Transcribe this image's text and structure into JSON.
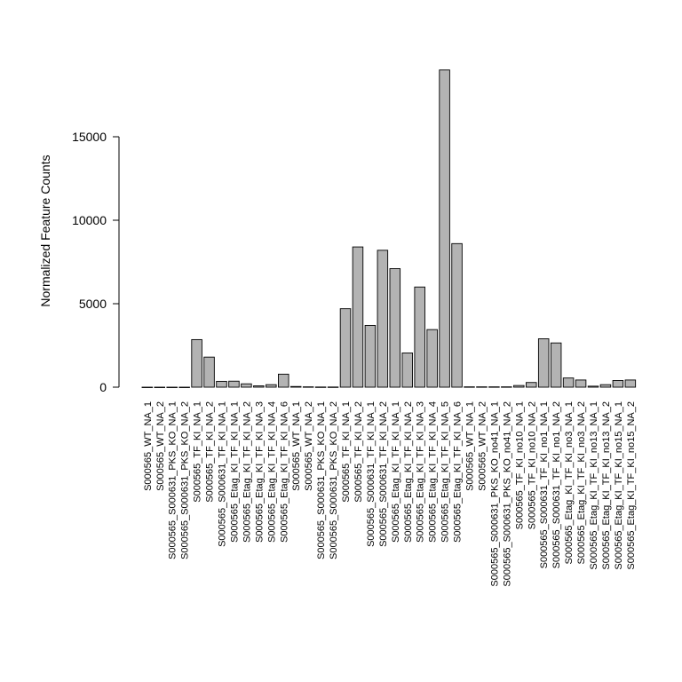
{
  "chart_data": {
    "type": "bar",
    "title": "",
    "xlabel": "",
    "ylabel": "Normalized Feature Counts",
    "ylim": [
      0,
      19000
    ],
    "yticks": [
      0,
      5000,
      10000,
      15000
    ],
    "ytick_labels": [
      "0",
      "5000",
      "10000",
      "15000"
    ],
    "bar_color": "#b3b3b3",
    "grid": false,
    "categories": [
      "S000565_WT_NA_1",
      "S000565_WT_NA_2",
      "S000565_S000631_PKS_KO_NA_1",
      "S000565_S000631_PKS_KO_NA_2",
      "S000565_TF_KI_NA_1",
      "S000565_TF_KI_NA_2",
      "S000565_S000631_TF_KI_NA_1",
      "S000565_Etag_KI_TF_KI_NA_1",
      "S000565_Etag_KI_TF_KI_NA_2",
      "S000565_Etag_KI_TF_KI_NA_3",
      "S000565_Etag_KI_TF_KI_NA_4",
      "S000565_Etag_KI_TF_KI_NA_6",
      "S000565_WT_NA_1",
      "S000565_WT_NA_2",
      "S000565_S000631_PKS_KO_NA_1",
      "S000565_S000631_PKS_KO_NA_2",
      "S000565_TF_KI_NA_1",
      "S000565_TF_KI_NA_2",
      "S000565_S000631_TF_KI_NA_1",
      "S000565_S000631_TF_KI_NA_2",
      "S000565_Etag_KI_TF_KI_NA_1",
      "S000565_Etag_KI_TF_KI_NA_2",
      "S000565_Etag_KI_TF_KI_NA_3",
      "S000565_Etag_KI_TF_KI_NA_4",
      "S000565_Etag_KI_TF_KI_NA_5",
      "S000565_Etag_KI_TF_KI_NA_6",
      "S000565_WT_NA_1",
      "S000565_WT_NA_2",
      "S000565_S000631_PKS_KO_no41_NA_1",
      "S000565_S000631_PKS_KO_no41_NA_2",
      "S000565_TF_KI_no10_NA_1",
      "S000565_TF_KI_no10_NA_2",
      "S000565_S000631_TF_KI_no1_NA_1",
      "S000565_S000631_TF_KI_no1_NA_2",
      "S000565_Etag_KI_TF_KI_no3_NA_1",
      "S000565_Etag_KI_TF_KI_no3_NA_2",
      "S000565_Etag_KI_TF_KI_no13_NA_1",
      "S000565_Etag_KI_TF_KI_no13_NA_2",
      "S000565_Etag_KI_TF_KI_no15_NA_1",
      "S000565_Etag_KI_TF_KI_no15_NA_2"
    ],
    "values": [
      0,
      0,
      0,
      0,
      2850,
      1800,
      350,
      360,
      200,
      80,
      150,
      780,
      40,
      20,
      10,
      10,
      4700,
      8400,
      3700,
      8200,
      7100,
      2050,
      6000,
      3450,
      19000,
      8600,
      20,
      20,
      20,
      20,
      100,
      280,
      2900,
      2650,
      550,
      430,
      60,
      150,
      400,
      430
    ]
  }
}
